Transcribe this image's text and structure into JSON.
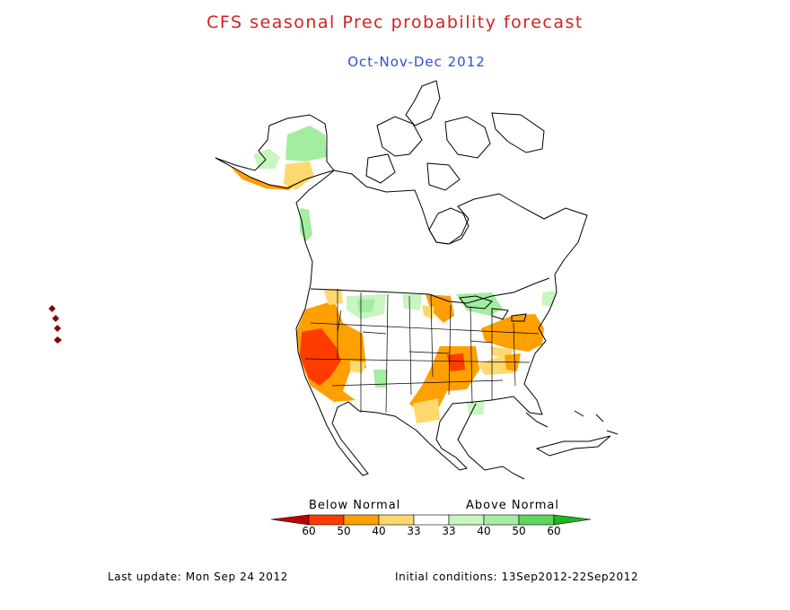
{
  "title": "CFS seasonal Prec probability forecast",
  "subtitle": "Oct-Nov-Dec 2012",
  "colors": {
    "title": "#d62020",
    "subtitle": "#2f4fd6",
    "coast": "#000000",
    "below_60": "#c00000",
    "below_50": "#ff3c00",
    "below_40": "#ff9f00",
    "below_33": "#ffd870",
    "normal": "#ffffff",
    "above_33": "#c8f5c0",
    "above_40": "#a3eda0",
    "above_50": "#78e078",
    "above_60": "#1fb61f"
  },
  "legend": {
    "below_label": "Below Normal",
    "above_label": "Above Normal",
    "ticks": [
      "60",
      "50",
      "40",
      "33",
      "33",
      "40",
      "50",
      "60"
    ]
  },
  "footer": {
    "last_update": "Last update: Mon Sep 24 2012",
    "initial_conditions": "Initial conditions: 13Sep2012-22Sep2012"
  }
}
